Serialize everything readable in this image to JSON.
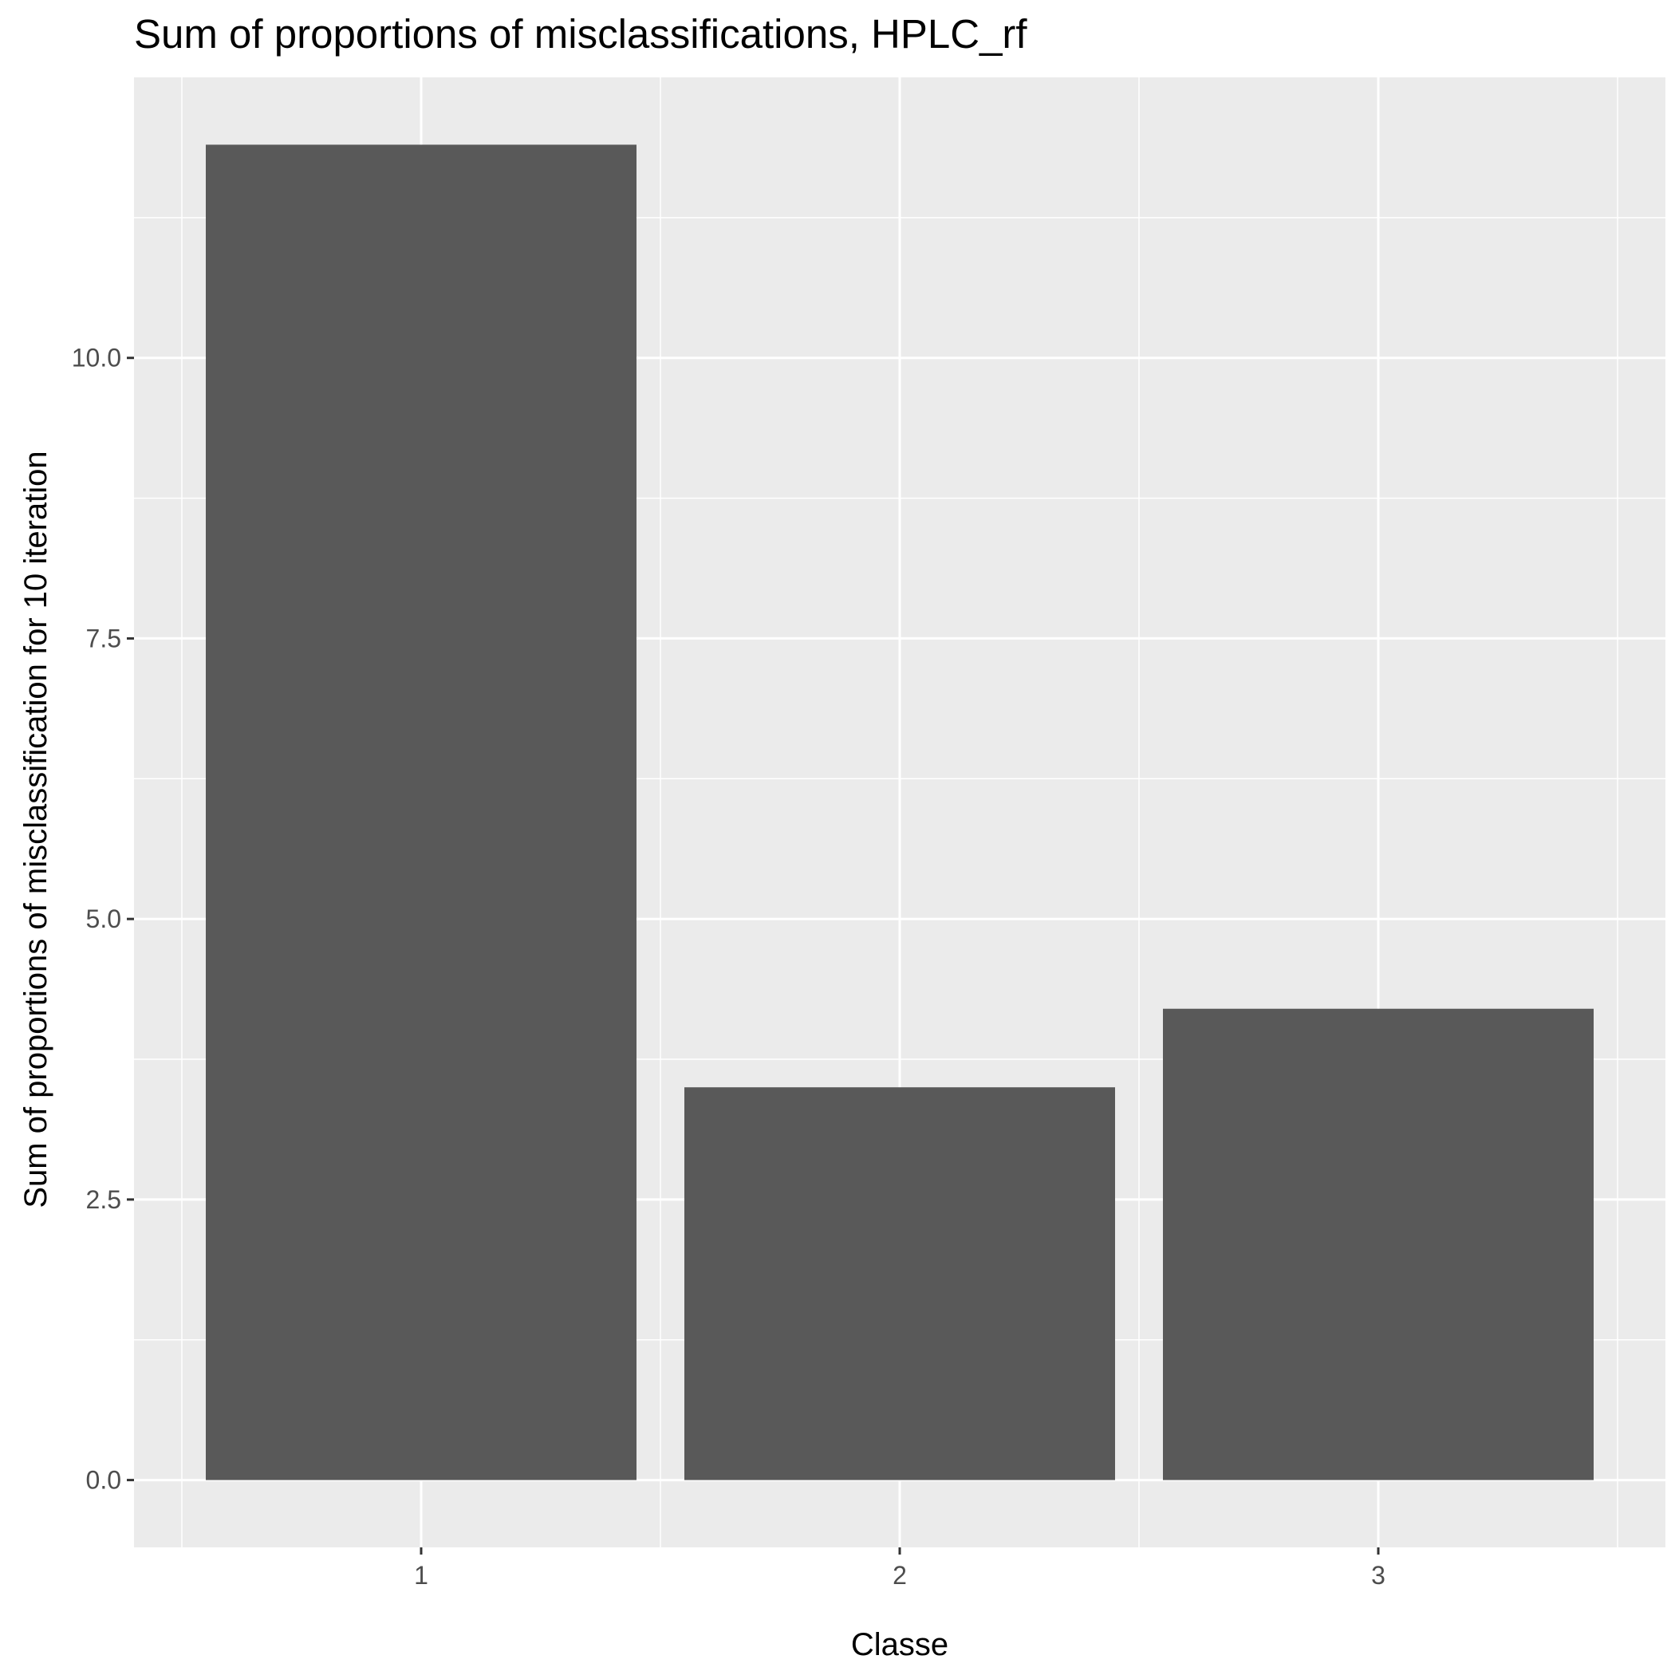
{
  "chart_data": {
    "type": "bar",
    "title": "Sum of proportions of misclassifications,  HPLC_rf",
    "xlabel": "Classe",
    "ylabel": "Sum of proportions of misclassification for 10 iteration",
    "categories": [
      "1",
      "2",
      "3"
    ],
    "values": [
      11.9,
      3.5,
      4.2
    ],
    "ylim": [
      -0.6,
      12.5
    ],
    "yticks": [
      0.0,
      2.5,
      5.0,
      7.5,
      10.0
    ],
    "ytick_labels": [
      "0.0",
      "2.5",
      "5.0",
      "7.5",
      "10.0"
    ],
    "grid": true,
    "legend": "none",
    "colors": {
      "bar": "#595959",
      "panel": "#ebebeb",
      "grid": "#ffffff",
      "tick": "#333333",
      "tick_label": "#4d4d4d"
    }
  }
}
